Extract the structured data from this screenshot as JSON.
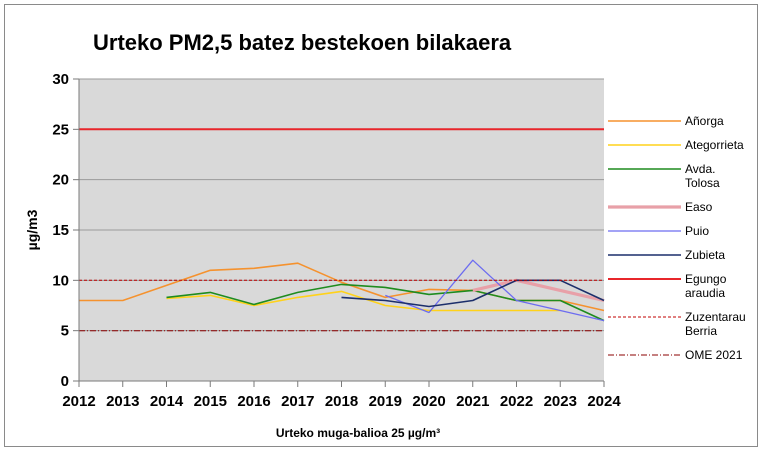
{
  "chart_data": {
    "type": "line",
    "title": "Urteko PM2,5 batez bestekoen bilakaera",
    "xlabel": "Urteko muga-balioa 25 µg/m³",
    "ylabel": "µg/m3",
    "ylim": [
      0,
      30
    ],
    "yticks": [
      "0",
      "5",
      "10",
      "15",
      "20",
      "25",
      "30"
    ],
    "x": [
      "2012",
      "2013",
      "2014",
      "2015",
      "2016",
      "2017",
      "2018",
      "2019",
      "2020",
      "2021",
      "2022",
      "2023",
      "2024"
    ],
    "grid": "horizontal",
    "legend_position": "right",
    "background": "#d9d9d9",
    "series": [
      {
        "name": "Añorga",
        "color": "#f5922e",
        "width": 1.6,
        "dash": "",
        "values": [
          8,
          8,
          9.5,
          11,
          11.2,
          11.7,
          9.8,
          8.3,
          9.1,
          9,
          8,
          8,
          7
        ]
      },
      {
        "name": "Ategorrieta",
        "color": "#ffd21a",
        "width": 1.6,
        "dash": "",
        "values": [
          null,
          null,
          8.2,
          8.5,
          7.5,
          8.3,
          8.9,
          7.5,
          7,
          7,
          7,
          7,
          null
        ]
      },
      {
        "name": "Avda. Tolosa",
        "color": "#1f8c1f",
        "width": 1.6,
        "dash": "",
        "values": [
          null,
          null,
          8.3,
          8.8,
          7.6,
          8.8,
          9.6,
          9.3,
          8.6,
          9,
          8,
          8,
          6
        ]
      },
      {
        "name": "Easo",
        "color": "#e8a0a8",
        "width": 3.2,
        "dash": "",
        "values": [
          null,
          null,
          null,
          null,
          null,
          null,
          null,
          null,
          null,
          9,
          10,
          9,
          8
        ]
      },
      {
        "name": "Puio",
        "color": "#6c6cf0",
        "width": 1.3,
        "dash": "",
        "values": [
          null,
          null,
          null,
          null,
          null,
          null,
          null,
          8.5,
          6.8,
          12,
          8,
          7,
          6
        ]
      },
      {
        "name": "Zubieta",
        "color": "#1c2f6b",
        "width": 1.6,
        "dash": "",
        "values": [
          null,
          null,
          null,
          null,
          null,
          null,
          8.3,
          8,
          7.4,
          8,
          10,
          10,
          8
        ]
      },
      {
        "name": "Egungo araudia",
        "color": "#e8262b",
        "width": 2,
        "dash": "",
        "values": [
          25,
          25,
          25,
          25,
          25,
          25,
          25,
          25,
          25,
          25,
          25,
          25,
          25
        ]
      },
      {
        "name": "Zuzentarau Berria",
        "color": "#c00000",
        "width": 1,
        "dash": "3,2",
        "values": [
          10,
          10,
          10,
          10,
          10,
          10,
          10,
          10,
          10,
          10,
          10,
          10,
          10
        ]
      },
      {
        "name": "OME 2021",
        "color": "#8b0000",
        "width": 1,
        "dash": "6,2,1,2",
        "values": [
          5,
          5,
          5,
          5,
          5,
          5,
          5,
          5,
          5,
          5,
          5,
          5,
          5
        ]
      }
    ]
  }
}
